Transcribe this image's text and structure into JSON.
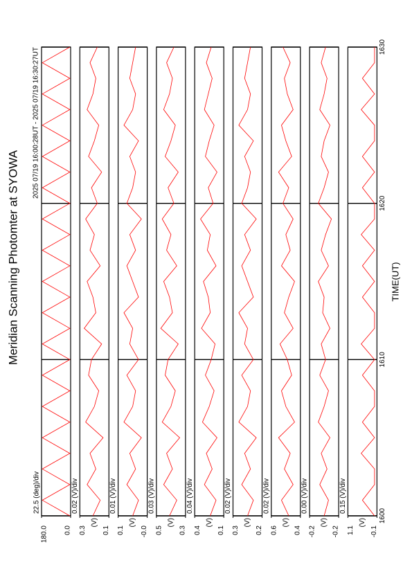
{
  "chart_data": {
    "type": "line",
    "title": "Meridian Scanning Photomter at SYOWA",
    "subtitle": "2025 07/19 16:00:28UT - 2025 07/19 16:30:27UT",
    "x_label": "TIME(UT)",
    "color": "#ff0000",
    "xlim": [
      1600,
      1630
    ],
    "xticks": [
      1600,
      1610,
      1620,
      1630
    ],
    "x": [
      1600,
      1601,
      1602,
      1603,
      1604,
      1605,
      1606,
      1607,
      1608,
      1609,
      1610,
      1611,
      1612,
      1613,
      1614,
      1615,
      1616,
      1617,
      1618,
      1619,
      1620,
      1621,
      1622,
      1623,
      1624,
      1625,
      1626,
      1627,
      1628,
      1629,
      1630
    ],
    "panels": [
      {
        "label": "22.5 (deg)/div",
        "ylim": [
          0,
          180
        ],
        "yticks": [
          {
            "value": 0,
            "label": "0.0"
          },
          {
            "value": 180,
            "label": "180.0"
          }
        ],
        "values": [
          5,
          175,
          5,
          175,
          5,
          175,
          5,
          175,
          5,
          175,
          5,
          175,
          5,
          175,
          5,
          175,
          5,
          175,
          5,
          175,
          5,
          175,
          5,
          175,
          5,
          175,
          5,
          175,
          5,
          175,
          5
        ]
      },
      {
        "label": "0.02 (V)/div",
        "unit": "(V)",
        "ylim": [
          0.1,
          0.3
        ],
        "yticks": [
          0.1,
          0.3
        ],
        "values": [
          0.21,
          0.16,
          0.25,
          0.19,
          0.23,
          0.14,
          0.26,
          0.2,
          0.17,
          0.24,
          0.22,
          0.15,
          0.27,
          0.19,
          0.21,
          0.25,
          0.16,
          0.23,
          0.2,
          0.26,
          0.18,
          0.22,
          0.15,
          0.24,
          0.2,
          0.17,
          0.25,
          0.21,
          0.19,
          0.23,
          0.18
        ]
      },
      {
        "label": "0.01 (V)/div",
        "unit": "(V)",
        "ylim": [
          0,
          0.1
        ],
        "yticks": [
          {
            "value": 0,
            "label": "-0.0"
          },
          0.1
        ],
        "values": [
          0.05,
          0.03,
          0.07,
          0.04,
          0.06,
          0.02,
          0.08,
          0.05,
          0.04,
          0.07,
          0.03,
          0.06,
          0.05,
          0.08,
          0.03,
          0.05,
          0.07,
          0.04,
          0.06,
          0.02,
          0.07,
          0.05,
          0.04,
          0.06,
          0.03,
          0.08,
          0.05,
          0.04,
          0.06,
          0.05,
          0.04
        ]
      },
      {
        "label": "0.03 (V)/div",
        "unit": "(V)",
        "ylim": [
          0.3,
          0.5
        ],
        "yticks": [
          0.3,
          0.5
        ],
        "values": [
          0.41,
          0.36,
          0.45,
          0.39,
          0.43,
          0.34,
          0.46,
          0.4,
          0.37,
          0.44,
          0.42,
          0.35,
          0.47,
          0.39,
          0.41,
          0.45,
          0.36,
          0.43,
          0.4,
          0.46,
          0.38,
          0.42,
          0.35,
          0.44,
          0.4,
          0.37,
          0.45,
          0.41,
          0.39,
          0.43,
          0.38
        ]
      },
      {
        "label": "0.04 (V)/div",
        "unit": "(V)",
        "ylim": [
          0.1,
          0.4
        ],
        "yticks": [
          0.1,
          0.4
        ],
        "values": [
          0.24,
          0.18,
          0.3,
          0.22,
          0.28,
          0.17,
          0.32,
          0.25,
          0.2,
          0.29,
          0.23,
          0.19,
          0.33,
          0.24,
          0.26,
          0.31,
          0.18,
          0.27,
          0.24,
          0.34,
          0.21,
          0.26,
          0.17,
          0.29,
          0.25,
          0.2,
          0.3,
          0.26,
          0.22,
          0.28,
          0.23
        ]
      },
      {
        "label": "0.02 (V)/div",
        "unit": "(V)",
        "ylim": [
          0.2,
          0.3
        ],
        "yticks": [
          0.2,
          0.3
        ],
        "values": [
          0.25,
          0.23,
          0.27,
          0.24,
          0.26,
          0.22,
          0.28,
          0.25,
          0.24,
          0.27,
          0.23,
          0.26,
          0.25,
          0.28,
          0.23,
          0.25,
          0.27,
          0.24,
          0.26,
          0.22,
          0.27,
          0.25,
          0.24,
          0.26,
          0.23,
          0.28,
          0.25,
          0.24,
          0.26,
          0.25,
          0.24
        ]
      },
      {
        "label": "0.02 (V)/div",
        "unit": "(V)",
        "ylim": [
          0.4,
          0.6
        ],
        "yticks": [
          0.4,
          0.6
        ],
        "values": [
          0.48,
          0.53,
          0.45,
          0.51,
          0.47,
          0.55,
          0.44,
          0.5,
          0.53,
          0.46,
          0.49,
          0.54,
          0.45,
          0.51,
          0.48,
          0.44,
          0.53,
          0.47,
          0.5,
          0.45,
          0.52,
          0.48,
          0.55,
          0.46,
          0.5,
          0.53,
          0.45,
          0.49,
          0.51,
          0.47,
          0.52
        ]
      },
      {
        "label": "0.00 (V)/div",
        "unit": "(V)",
        "ylim": [
          -0.21,
          -0.19
        ],
        "yticks": [
          {
            "value": -0.21,
            "label": "-0.2"
          },
          {
            "value": -0.19,
            "label": "-0.2"
          }
        ],
        "values": [
          -0.2,
          -0.203,
          -0.197,
          -0.202,
          -0.198,
          -0.204,
          -0.196,
          -0.2,
          -0.203,
          -0.197,
          -0.201,
          -0.198,
          -0.204,
          -0.199,
          -0.2,
          -0.196,
          -0.203,
          -0.198,
          -0.201,
          -0.205,
          -0.196,
          -0.2,
          -0.203,
          -0.198,
          -0.2,
          -0.204,
          -0.197,
          -0.2,
          -0.202,
          -0.198,
          -0.201
        ]
      },
      {
        "label": "0.15 (V)/div",
        "unit": "(V)",
        "ylim": [
          -0.1,
          1.1
        ],
        "yticks": [
          -0.1,
          1.1
        ],
        "values": [
          0.0,
          0.5,
          0.0,
          0.0,
          0.55,
          0.0,
          0.5,
          0.0,
          0.0,
          0.5,
          0.0,
          0.55,
          0.0,
          0.0,
          0.5,
          0.0,
          0.5,
          0.0,
          0.55,
          0.0,
          0.0,
          0.5,
          0.0,
          0.5,
          0.0,
          0.0,
          0.55,
          0.0,
          0.5,
          0.0,
          0.0
        ]
      }
    ]
  }
}
